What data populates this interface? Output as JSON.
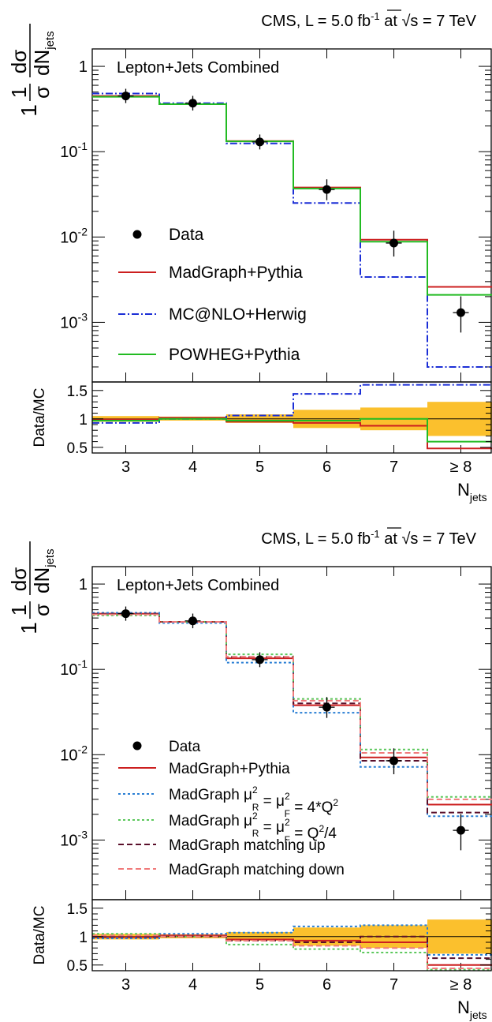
{
  "chart_data": [
    {
      "type": "step",
      "header": {
        "pre": "CMS, L = 5.0 fb",
        "sup": "-1",
        "mid": " at ",
        "sqrt": "√s",
        "post": " = 7 TeV"
      },
      "title": "Lepton+Jets Combined",
      "ylabel": {
        "pre": "1",
        "frac_top": "dσ",
        "frac_bot_main": "dN",
        "frac_bot_sub": "jets",
        "sigma": "σ"
      },
      "yscale": "log",
      "ylim": [
        0.0002,
        1.6
      ],
      "ytick_labels": [
        {
          "base": "1",
          "exp": "",
          "value": 1
        },
        {
          "base": "10",
          "exp": "-1",
          "value": 0.1
        },
        {
          "base": "10",
          "exp": "-2",
          "value": 0.01
        },
        {
          "base": "10",
          "exp": "-3",
          "value": 0.001
        }
      ],
      "categories": [
        "3",
        "4",
        "5",
        "6",
        "7",
        "≥ 8"
      ],
      "xlabel": {
        "main": "N",
        "sub": "jets"
      },
      "data": {
        "name": "Data",
        "values": [
          0.45,
          0.37,
          0.13,
          0.036,
          0.0085,
          0.0013
        ],
        "err_low": [
          0.01,
          0.01,
          0.004,
          0.004,
          0.0015,
          0.0004
        ],
        "err_high": [
          0.01,
          0.01,
          0.004,
          0.004,
          0.0015,
          0.0004
        ]
      },
      "series": [
        {
          "name": "MadGraph+Pythia",
          "color": "#cc1f1f",
          "dash": "solid",
          "values": [
            0.45,
            0.36,
            0.133,
            0.038,
            0.0093,
            0.0026
          ]
        },
        {
          "name": "MC@NLO+Herwig",
          "color": "#1c2fd6",
          "dash": "dashdot",
          "values": [
            0.48,
            0.37,
            0.125,
            0.025,
            0.0034,
            0.0003
          ]
        },
        {
          "name": "POWHEG+Pythia",
          "color": "#22bb22",
          "dash": "solid",
          "values": [
            0.44,
            0.36,
            0.132,
            0.037,
            0.0088,
            0.0021
          ]
        }
      ],
      "ratio": {
        "ylabel": "Data/MC",
        "ylim": [
          0.4,
          1.65
        ],
        "ytick_labels": [
          "1.5",
          "1",
          "0.5"
        ],
        "ytick_values": [
          1.5,
          1.0,
          0.5
        ],
        "band": {
          "color": "#fbc02d",
          "low": [
            0.95,
            0.97,
            0.93,
            0.84,
            0.8,
            0.7
          ],
          "high": [
            1.05,
            1.04,
            1.08,
            1.16,
            1.2,
            1.3
          ]
        },
        "series": [
          {
            "name": "MadGraph+Pythia",
            "values": [
              0.99,
              1.02,
              0.95,
              0.93,
              0.88,
              0.48
            ]
          },
          {
            "name": "MC@NLO+Herwig",
            "values": [
              0.93,
              1.0,
              1.06,
              1.44,
              1.6,
              1.6
            ]
          },
          {
            "name": "POWHEG+Pythia",
            "values": [
              0.97,
              1.0,
              0.97,
              0.97,
              1.0,
              0.6
            ]
          }
        ]
      }
    },
    {
      "type": "step",
      "header": {
        "pre": "CMS, L = 5.0 fb",
        "sup": "-1",
        "mid": " at ",
        "sqrt": "√s",
        "post": " = 7 TeV"
      },
      "title": "Lepton+Jets Combined",
      "ylabel": {
        "pre": "1",
        "frac_top": "dσ",
        "frac_bot_main": "dN",
        "frac_bot_sub": "jets",
        "sigma": "σ"
      },
      "yscale": "log",
      "ylim": [
        0.0002,
        1.6
      ],
      "ytick_labels": [
        {
          "base": "1",
          "exp": "",
          "value": 1
        },
        {
          "base": "10",
          "exp": "-1",
          "value": 0.1
        },
        {
          "base": "10",
          "exp": "-2",
          "value": 0.01
        },
        {
          "base": "10",
          "exp": "-3",
          "value": 0.001
        }
      ],
      "categories": [
        "3",
        "4",
        "5",
        "6",
        "7",
        "≥ 8"
      ],
      "xlabel": {
        "main": "N",
        "sub": "jets"
      },
      "data": {
        "name": "Data",
        "values": [
          0.45,
          0.37,
          0.13,
          0.036,
          0.0085,
          0.0013
        ],
        "err_low": [
          0.01,
          0.01,
          0.004,
          0.004,
          0.0015,
          0.0004
        ],
        "err_high": [
          0.01,
          0.01,
          0.004,
          0.004,
          0.0015,
          0.0004
        ]
      },
      "series": [
        {
          "name": "MadGraph+Pythia",
          "legend": [
            {
              "t": "MadGraph+Pythia"
            }
          ],
          "color": "#cc1f1f",
          "dash": "solid",
          "values": [
            0.45,
            0.36,
            0.135,
            0.038,
            0.0093,
            0.0026
          ]
        },
        {
          "name": "MadGraph μR2 = μF2 = 4*Q2",
          "legend": [
            {
              "t": "MadGraph "
            },
            {
              "t": "μ"
            },
            {
              "t": "2",
              "sup": true
            },
            {
              "t": "R",
              "sub": true
            },
            {
              "t": " = μ"
            },
            {
              "t": "2",
              "sup": true
            },
            {
              "t": "F",
              "sub": true
            },
            {
              "t": " = 4*Q"
            },
            {
              "t": "2",
              "sup": true
            }
          ],
          "color": "#2a7fd4",
          "dash": "dotted",
          "values": [
            0.46,
            0.35,
            0.12,
            0.031,
            0.0072,
            0.0019
          ]
        },
        {
          "name": "MadGraph μR2 = μF2 = Q2/4",
          "legend": [
            {
              "t": "MadGraph "
            },
            {
              "t": "μ"
            },
            {
              "t": "2",
              "sup": true
            },
            {
              "t": "R",
              "sub": true
            },
            {
              "t": " = μ"
            },
            {
              "t": "2",
              "sup": true
            },
            {
              "t": "F",
              "sub": true
            },
            {
              "t": " = Q"
            },
            {
              "t": "2",
              "sup": true
            },
            {
              "t": "/4"
            }
          ],
          "color": "#5cc85c",
          "dash": "dotted",
          "values": [
            0.43,
            0.36,
            0.15,
            0.045,
            0.0115,
            0.0032
          ]
        },
        {
          "name": "MadGraph matching up",
          "legend": [
            {
              "t": "MadGraph matching up"
            }
          ],
          "color": "#5a0f2a",
          "dash": "dashed",
          "values": [
            0.45,
            0.36,
            0.14,
            0.04,
            0.0085,
            0.0021
          ]
        },
        {
          "name": "MadGraph matching down",
          "legend": [
            {
              "t": "MadGraph matching down"
            }
          ],
          "color": "#f07a7a",
          "dash": "dashed",
          "values": [
            0.44,
            0.36,
            0.14,
            0.043,
            0.0105,
            0.003
          ]
        }
      ],
      "ratio": {
        "ylabel": "Data/MC",
        "ylim": [
          0.4,
          1.65
        ],
        "ytick_labels": [
          "1.5",
          "1",
          "0.5"
        ],
        "ytick_values": [
          1.5,
          1.0,
          0.5
        ],
        "band": {
          "color": "#fbc02d",
          "low": [
            0.95,
            0.97,
            0.93,
            0.84,
            0.8,
            0.7
          ],
          "high": [
            1.05,
            1.04,
            1.08,
            1.16,
            1.2,
            1.3
          ]
        },
        "series": [
          {
            "name": "MadGraph+Pythia",
            "values": [
              0.99,
              1.02,
              0.95,
              0.93,
              0.9,
              0.5
            ]
          },
          {
            "name": "MadGraph μR2 = μF2 = 4*Q2",
            "values": [
              0.97,
              1.05,
              1.07,
              1.18,
              1.2,
              0.68
            ]
          },
          {
            "name": "MadGraph μR2 = μF2 = Q2/4",
            "values": [
              1.05,
              1.0,
              0.86,
              0.78,
              0.72,
              0.42
            ]
          },
          {
            "name": "MadGraph matching up",
            "values": [
              1.0,
              1.0,
              0.93,
              0.9,
              1.0,
              0.62
            ]
          },
          {
            "name": "MadGraph matching down",
            "values": [
              1.02,
              1.0,
              0.93,
              0.84,
              0.8,
              0.44
            ]
          }
        ]
      }
    }
  ]
}
